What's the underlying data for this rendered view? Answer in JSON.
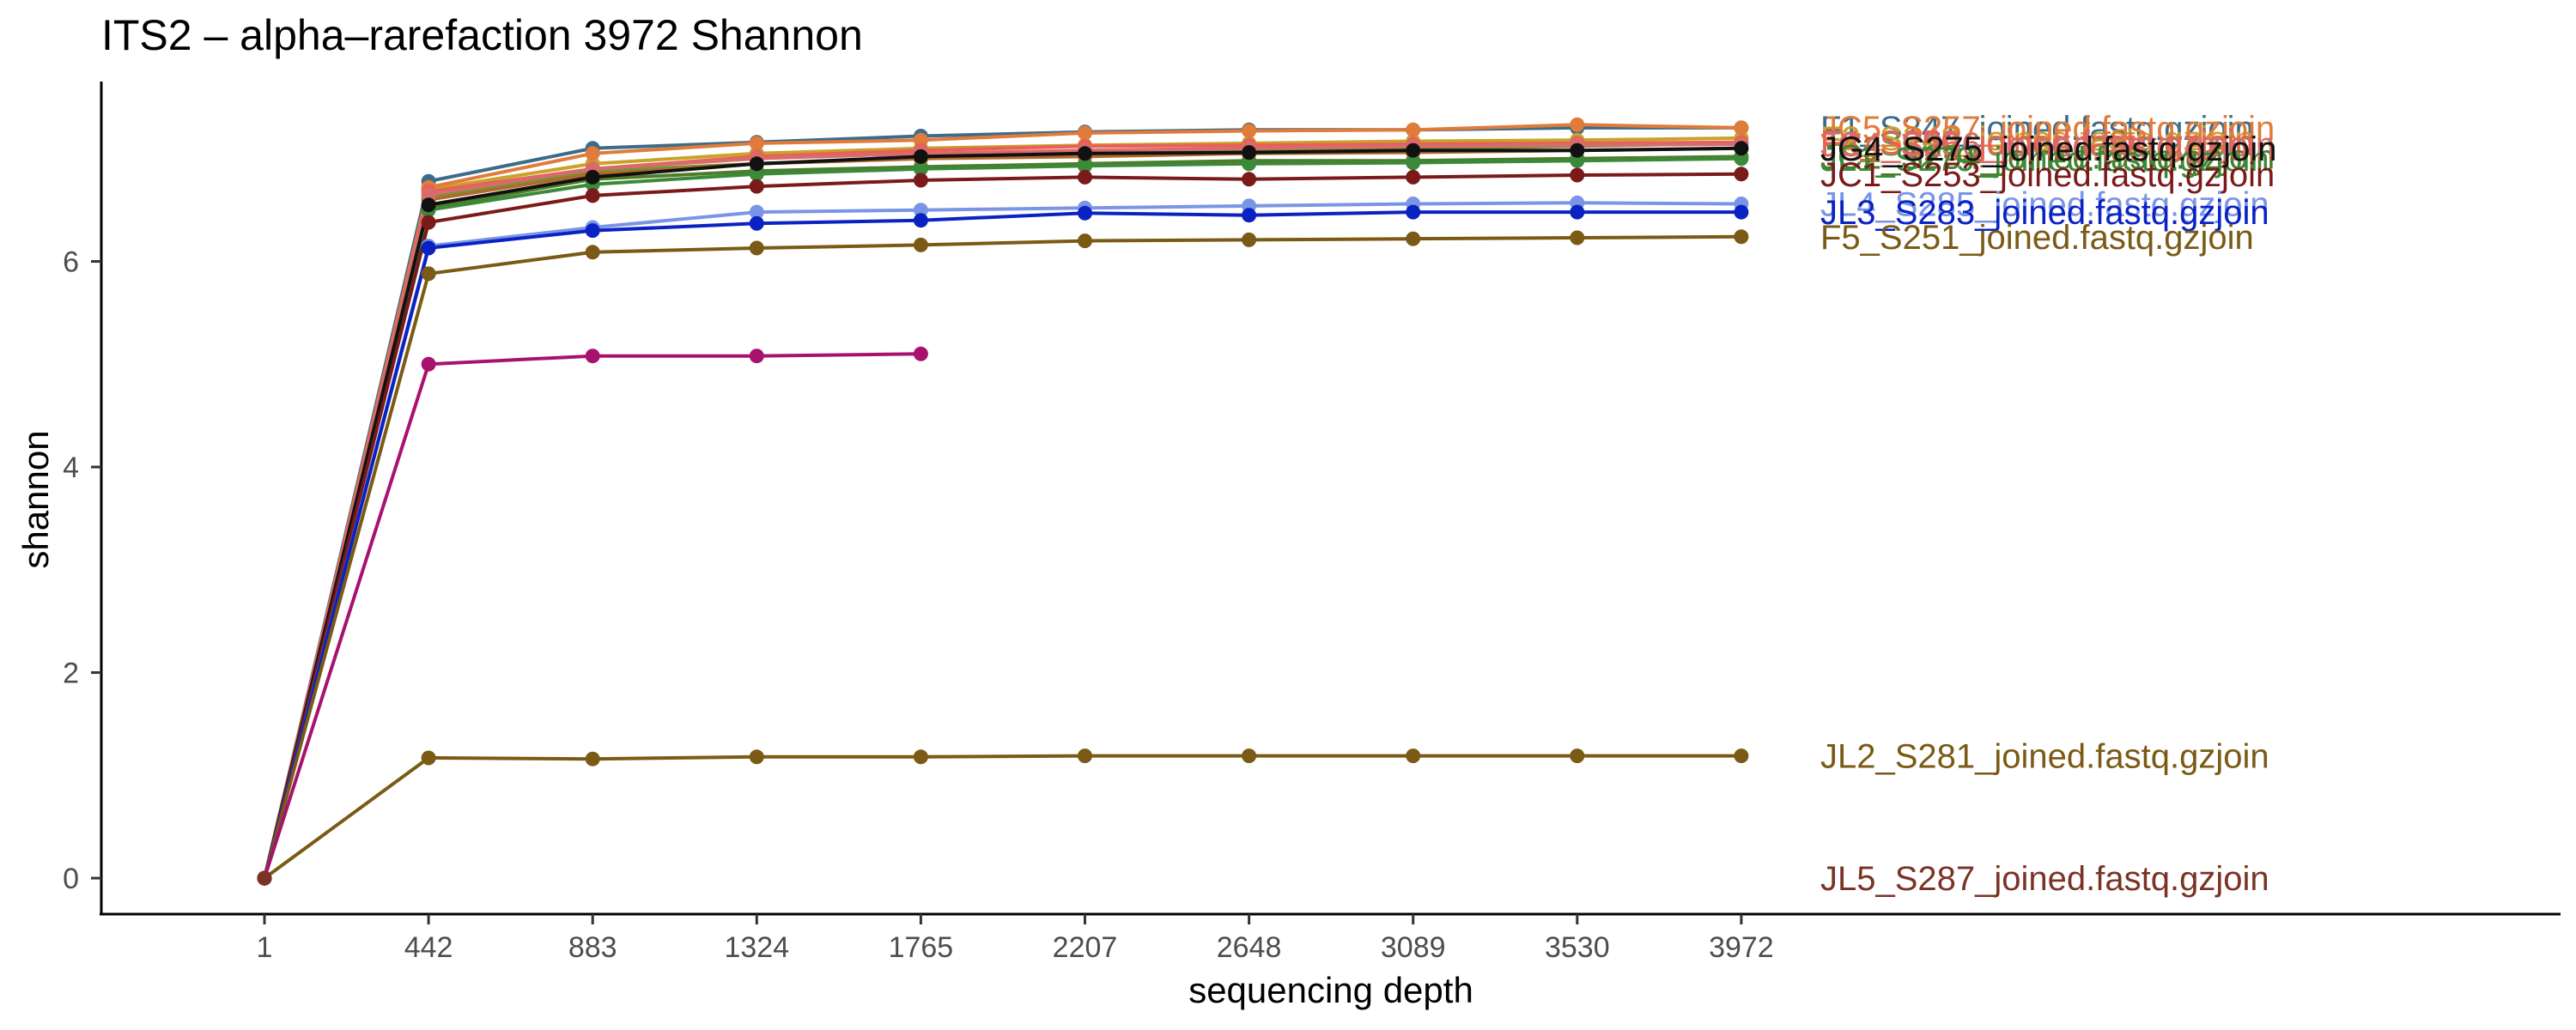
{
  "chart_data": {
    "type": "line",
    "title": "ITS2 – alpha–rarefaction 3972 Shannon",
    "xlabel": "sequencing depth",
    "ylabel": "shannon",
    "x": [
      1,
      442,
      883,
      1324,
      1765,
      2207,
      2648,
      3089,
      3530,
      3972
    ],
    "x_tick_labels": [
      "1",
      "442",
      "883",
      "1324",
      "1765",
      "2207",
      "2648",
      "3089",
      "3530",
      "3972"
    ],
    "y_ticks": [
      0,
      2,
      4,
      6
    ],
    "y_tick_labels": [
      "0",
      "2",
      "4",
      "6"
    ],
    "ylim": [
      -0.35,
      7.75
    ],
    "grid": false,
    "legend": "labels at line ends (right)",
    "series": [
      {
        "name": "F1_S247_joined.fastq.gzjoin",
        "color": "#3d6b8a",
        "values": [
          0,
          6.78,
          7.1,
          7.16,
          7.22,
          7.26,
          7.28,
          7.28,
          7.3,
          7.3
        ]
      },
      {
        "name": "F3_S249_joined.fastq.gzjoin",
        "color": "#6b9b3a",
        "values": [
          0,
          6.62,
          6.88,
          6.95,
          7.0,
          7.05,
          7.08,
          7.1,
          7.12,
          7.15
        ]
      },
      {
        "name": "F2_S248_joined.fastq.gzjoin",
        "color": "#c9a227",
        "values": [
          0,
          6.7,
          6.95,
          7.05,
          7.1,
          7.13,
          7.15,
          7.17,
          7.18,
          7.2
        ]
      },
      {
        "name": "JC5_S257_joined.fastq.gzjoin",
        "color": "#e07b39",
        "values": [
          0,
          6.72,
          7.05,
          7.15,
          7.18,
          7.25,
          7.27,
          7.28,
          7.33,
          7.3
        ]
      },
      {
        "name": "F4_S250_joined.fastq.gzjoin",
        "color": "#e9605a",
        "values": [
          0,
          6.68,
          6.9,
          7.02,
          7.08,
          7.12,
          7.13,
          7.14,
          7.15,
          7.16
        ]
      },
      {
        "name": "JC2_S254_joined.fastq.gzjoin",
        "color": "#4e7d2a",
        "values": [
          0,
          6.52,
          6.8,
          6.88,
          6.92,
          6.95,
          6.98,
          6.98,
          7.0,
          7.02
        ]
      },
      {
        "name": "JC3_S255_joined.fastq.gzjoin",
        "color": "#b06a2a",
        "values": [
          0,
          6.6,
          6.85,
          6.95,
          7.0,
          7.02,
          7.05,
          7.06,
          7.08,
          7.1
        ]
      },
      {
        "name": "JC4_S256_joined.fastq.gzjoin",
        "color": "#d96b6b",
        "values": [
          0,
          6.65,
          6.9,
          7.0,
          7.05,
          7.08,
          7.1,
          7.12,
          7.13,
          7.14
        ]
      },
      {
        "name": "JL1_S279_joined.fastq.gzjoin",
        "color": "#3a8a3a",
        "values": [
          0,
          6.5,
          6.75,
          6.85,
          6.9,
          6.93,
          6.95,
          6.96,
          6.98,
          7.0
        ]
      },
      {
        "name": "JG4_S275_joined.fastq.gzjoin",
        "color": "#111111",
        "values": [
          0,
          6.55,
          6.82,
          6.95,
          7.02,
          7.05,
          7.06,
          7.08,
          7.08,
          7.1
        ]
      },
      {
        "name": "JC1_S253_joined.fastq.gzjoin",
        "color": "#7a1a1a",
        "values": [
          0,
          6.38,
          6.64,
          6.73,
          6.79,
          6.82,
          6.8,
          6.82,
          6.84,
          6.85
        ]
      },
      {
        "name": "JL4_S285_joined.fastq.gzjoin",
        "color": "#7a95e6",
        "values": [
          0,
          6.15,
          6.33,
          6.48,
          6.5,
          6.52,
          6.54,
          6.56,
          6.57,
          6.56
        ]
      },
      {
        "name": "JL3_S283_joined.fastq.gzjoin",
        "color": "#0a22c2",
        "values": [
          0,
          6.13,
          6.3,
          6.37,
          6.4,
          6.47,
          6.45,
          6.48,
          6.48,
          6.48
        ]
      },
      {
        "name": "F5_S251_joined.fastq.gzjoin",
        "color": "#7a5a14",
        "values": [
          0,
          5.88,
          6.09,
          6.13,
          6.16,
          6.2,
          6.21,
          6.22,
          6.23,
          6.24
        ]
      },
      {
        "name": "",
        "color": "#a8126e",
        "values": [
          0,
          5.0,
          5.08,
          5.08,
          5.1,
          null,
          null,
          null,
          null,
          null
        ]
      },
      {
        "name": "JL2_S281_joined.fastq.gzjoin",
        "color": "#7a5a14",
        "values": [
          0,
          1.17,
          1.16,
          1.18,
          1.18,
          1.19,
          1.19,
          1.19,
          1.19,
          1.19
        ]
      },
      {
        "name": "JL5_S287_joined.fastq.gzjoin",
        "color": "#7a3326",
        "values": [
          0,
          null,
          null,
          null,
          null,
          null,
          null,
          null,
          null,
          null
        ]
      }
    ]
  }
}
